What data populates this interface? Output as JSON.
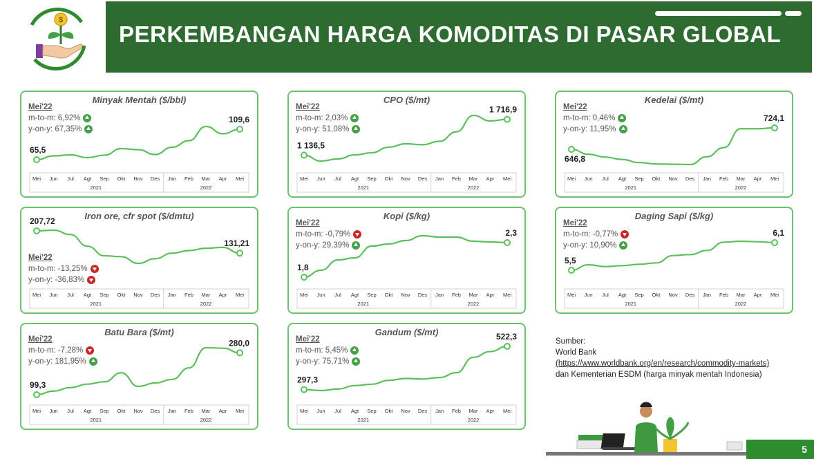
{
  "page": {
    "title": "PERKEMBANGAN HARGA KOMODITAS DI PASAR GLOBAL",
    "page_number": "5"
  },
  "source": {
    "label": "Sumber:",
    "line1": "World Bank",
    "url": "(https://www.worldbank.org/en/research/commodity-markets)",
    "line3": "dan Kementerian ESDM (harga minyak mentah Indonesia)"
  },
  "colors": {
    "header": "#2e6b30",
    "line": "#5cbf5c",
    "border": "#6cc26c",
    "up": "#43a047",
    "down": "#c62828"
  },
  "icons": [
    "money-plant-hand-icon",
    "arrow-up-icon",
    "arrow-down-icon"
  ],
  "chart_data": [
    {
      "type": "line",
      "title": "Minyak Mentah ($/bbl)",
      "period_label": "Mei'22",
      "mtm": "m-to-m: 6,92%",
      "mtm_dir": "up",
      "yoy": "y-on-y: 67,35%",
      "yoy_dir": "up",
      "start_label": "65,5",
      "end_label": "109,6",
      "x": [
        "Mei",
        "Jun",
        "Jul",
        "Agt",
        "Sep",
        "Okt",
        "Nov",
        "Des",
        "Jan",
        "Feb",
        "Mar",
        "Apr",
        "Mei"
      ],
      "years": [
        "2021",
        "2022"
      ],
      "values": [
        65.5,
        71.0,
        72.5,
        68.5,
        72.0,
        81.5,
        80.0,
        73.0,
        83.5,
        93.0,
        113.5,
        103.0,
        109.6
      ]
    },
    {
      "type": "line",
      "title": "CPO ($/mt)",
      "period_label": "Mei'22",
      "mtm": "m-to-m: 2,03%",
      "mtm_dir": "up",
      "yoy": "y-on-y: 51,08%",
      "yoy_dir": "up",
      "start_label": "1 136,5",
      "end_label": "1 716,9",
      "x": [
        "Mei",
        "Jun",
        "Jul",
        "Agt",
        "Sep",
        "Okt",
        "Nov",
        "Des",
        "Jan",
        "Feb",
        "Mar",
        "Apr",
        "Mei"
      ],
      "years": [
        "2021",
        "2022"
      ],
      "values": [
        1136.5,
        1040,
        1075,
        1140,
        1175,
        1265,
        1320,
        1305,
        1360,
        1515,
        1780,
        1690,
        1716.9
      ]
    },
    {
      "type": "line",
      "title": "Kedelai ($/mt)",
      "period_label": "Mei'22",
      "mtm": "m-to-m: 0,46%",
      "mtm_dir": "up",
      "yoy": "y-on-y: 11,95%",
      "yoy_dir": "up",
      "start_label": "646,8",
      "end_label": "724,1",
      "x": [
        "Mei",
        "Jun",
        "Jul",
        "Agt",
        "Sep",
        "Okt",
        "Nov",
        "Des",
        "Jan",
        "Feb",
        "Mar",
        "Apr",
        "Mei"
      ],
      "years": [
        "2021",
        "2022"
      ],
      "values": [
        646.8,
        629,
        619,
        610,
        599,
        594,
        593,
        592,
        620,
        653,
        721,
        721,
        724.1
      ]
    },
    {
      "type": "line",
      "title": "Iron ore, cfr spot ($/dmtu)",
      "period_label": "Mei'22",
      "mtm": "m-to-m: -13,25%",
      "mtm_dir": "down",
      "yoy": "y-on-y: -36,83%",
      "yoy_dir": "down",
      "start_label": "207,72",
      "end_label": "131,21",
      "x": [
        "Mei",
        "Jun",
        "Jul",
        "Agt",
        "Sep",
        "Okt",
        "Nov",
        "Des",
        "Jan",
        "Feb",
        "Mar",
        "Apr",
        "Mei"
      ],
      "years": [
        "2021",
        "2022"
      ],
      "values": [
        207.72,
        210,
        195,
        155,
        122,
        119,
        96,
        112,
        131,
        140,
        148,
        151,
        131.21
      ]
    },
    {
      "type": "line",
      "title": "Kopi ($/kg)",
      "period_label": "Mei'22",
      "mtm": "m-to-m: -0,79%",
      "mtm_dir": "down",
      "yoy": "y-on-y: 29,39%",
      "yoy_dir": "up",
      "start_label": "1,8",
      "end_label": "2,3",
      "x": [
        "Mei",
        "Jun",
        "Jul",
        "Agt",
        "Sep",
        "Okt",
        "Nov",
        "Des",
        "Jan",
        "Feb",
        "Mar",
        "Apr",
        "Mei"
      ],
      "years": [
        "2021",
        "2022"
      ],
      "values": [
        1.8,
        1.9,
        2.05,
        2.08,
        2.25,
        2.28,
        2.33,
        2.4,
        2.38,
        2.38,
        2.32,
        2.31,
        2.3
      ]
    },
    {
      "type": "line",
      "title": "Daging Sapi ($/kg)",
      "period_label": "Mei'22",
      "mtm": "m-to-m: -0,77%",
      "mtm_dir": "down",
      "yoy": "y-on-y: 10,90%",
      "yoy_dir": "up",
      "start_label": "5,5",
      "end_label": "6,1",
      "x": [
        "Mei",
        "Jun",
        "Jul",
        "Agt",
        "Sep",
        "Okt",
        "Nov",
        "Des",
        "Jan",
        "Feb",
        "Mar",
        "Apr",
        "Mei"
      ],
      "years": [
        "2021",
        "2022"
      ],
      "values": [
        5.5,
        5.62,
        5.58,
        5.6,
        5.63,
        5.66,
        5.82,
        5.84,
        5.93,
        6.11,
        6.13,
        6.12,
        6.1
      ]
    },
    {
      "type": "line",
      "title": "Batu Bara ($/mt)",
      "period_label": "Mei'22",
      "mtm": "m-to-m: -7,28%",
      "mtm_dir": "down",
      "yoy": "y-on-y: 181,95%",
      "yoy_dir": "up",
      "start_label": "99,3",
      "end_label": "280,0",
      "x": [
        "Mei",
        "Jun",
        "Jul",
        "Agt",
        "Sep",
        "Okt",
        "Nov",
        "Des",
        "Jan",
        "Feb",
        "Mar",
        "Apr",
        "Mei"
      ],
      "years": [
        "2021",
        "2022"
      ],
      "values": [
        99.3,
        115,
        130,
        145,
        155,
        194,
        135,
        150,
        165,
        215,
        302,
        300,
        280.0
      ]
    },
    {
      "type": "line",
      "title": "Gandum ($/mt)",
      "period_label": "Mei'22",
      "mtm": "m-to-m: 5,45%",
      "mtm_dir": "up",
      "yoy": "y-on-y: 75,71%",
      "yoy_dir": "up",
      "start_label": "297,3",
      "end_label": "522,3",
      "x": [
        "Mei",
        "Jun",
        "Jul",
        "Agt",
        "Sep",
        "Okt",
        "Nov",
        "Des",
        "Jan",
        "Feb",
        "Mar",
        "Apr",
        "Mei"
      ],
      "years": [
        "2021",
        "2022"
      ],
      "values": [
        297.3,
        292,
        300,
        318,
        325,
        345,
        355,
        352,
        360,
        385,
        465,
        495,
        522.3
      ]
    }
  ]
}
